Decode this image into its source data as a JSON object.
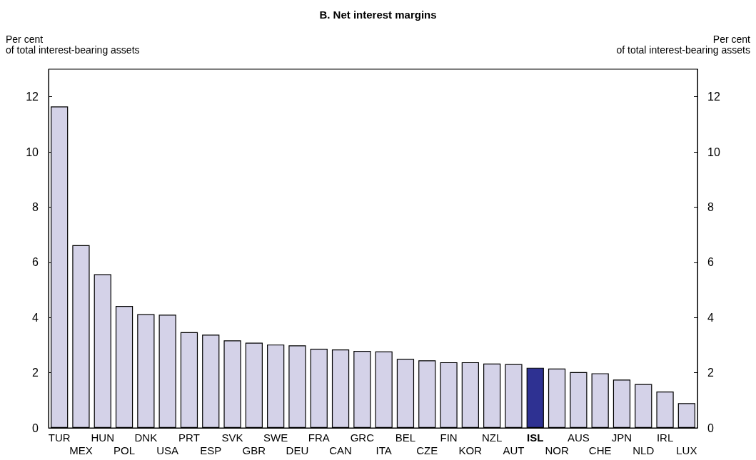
{
  "chart_data": {
    "type": "bar",
    "title": "B. Net interest margins",
    "ylabel": "Per cent\nof total interest-bearing assets",
    "y2label": "Per cent\nof total interest-bearing assets",
    "categories": [
      "TUR",
      "MEX",
      "HUN",
      "POL",
      "DNK",
      "USA",
      "PRT",
      "ESP",
      "SVK",
      "GBR",
      "SWE",
      "DEU",
      "FRA",
      "CAN",
      "GRC",
      "ITA",
      "BEL",
      "CZE",
      "FIN",
      "KOR",
      "NZL",
      "AUT",
      "ISL",
      "NOR",
      "AUS",
      "CHE",
      "JPN",
      "NLD",
      "IRL",
      "LUX"
    ],
    "values": [
      11.65,
      6.62,
      5.57,
      4.42,
      4.12,
      4.1,
      3.47,
      3.38,
      3.17,
      3.09,
      3.02,
      2.99,
      2.87,
      2.84,
      2.79,
      2.77,
      2.5,
      2.45,
      2.38,
      2.38,
      2.33,
      2.31,
      2.18,
      2.15,
      2.02,
      1.98,
      1.75,
      1.59,
      1.32,
      0.9
    ],
    "colors": [
      "#d4d2e8",
      "#d4d2e8",
      "#d4d2e8",
      "#d4d2e8",
      "#d4d2e8",
      "#d4d2e8",
      "#d4d2e8",
      "#d4d2e8",
      "#d4d2e8",
      "#d4d2e8",
      "#d4d2e8",
      "#d4d2e8",
      "#d4d2e8",
      "#d4d2e8",
      "#d4d2e8",
      "#d4d2e8",
      "#d4d2e8",
      "#d4d2e8",
      "#d4d2e8",
      "#d4d2e8",
      "#d4d2e8",
      "#d4d2e8",
      "#2e3192",
      "#d4d2e8",
      "#d4d2e8",
      "#d4d2e8",
      "#d4d2e8",
      "#d4d2e8",
      "#d4d2e8",
      "#d4d2e8"
    ],
    "ylim": [
      0,
      13
    ],
    "yticks": [
      0,
      2,
      4,
      6,
      8,
      10,
      12
    ],
    "y2lim": [
      0,
      13
    ],
    "y2ticks": [
      0,
      2,
      4,
      6,
      8,
      10,
      12
    ]
  }
}
